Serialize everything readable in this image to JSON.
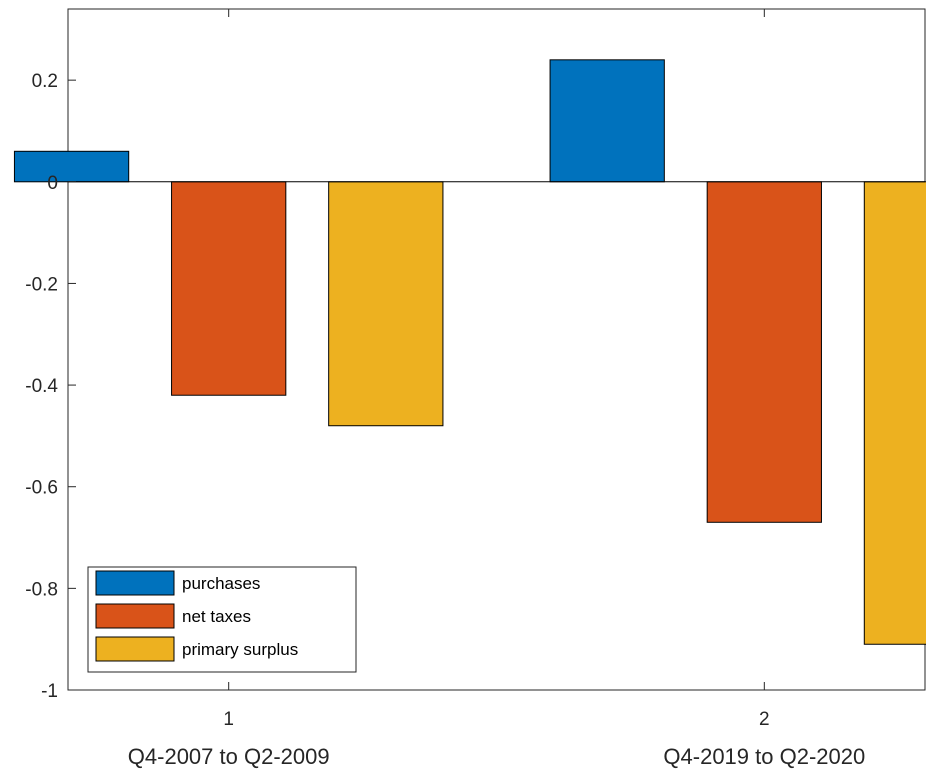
{
  "chart_data": {
    "type": "bar",
    "categories": [
      "1",
      "2"
    ],
    "group_labels": [
      "Q4-2007 to Q2-2009",
      "Q4-2019 to Q2-2020"
    ],
    "series": [
      {
        "name": "purchases",
        "values": [
          0.06,
          0.24
        ],
        "color": "#0072BD"
      },
      {
        "name": "net taxes",
        "values": [
          -0.42,
          -0.67
        ],
        "color": "#D95319"
      },
      {
        "name": "primary surplus",
        "values": [
          -0.48,
          -0.91
        ],
        "color": "#EDB120"
      }
    ],
    "yticks": [
      0.2,
      0,
      -0.2,
      -0.4,
      -0.6,
      -0.8,
      -1
    ],
    "ytick_labels": [
      "0.2",
      "0",
      "-0.2",
      "-0.4",
      "-0.6",
      "-0.8",
      "-1"
    ],
    "ylim": [
      -1,
      0.34
    ],
    "title": "",
    "xlabel": "",
    "ylabel": "",
    "grid": false,
    "legend_position": "bottom-left"
  }
}
